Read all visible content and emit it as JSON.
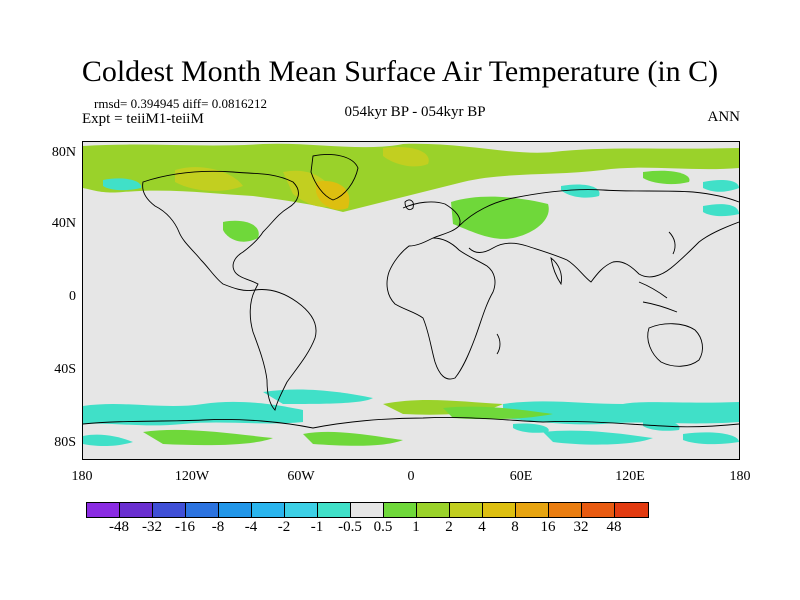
{
  "title": "Coldest Month Mean Surface Air Temperature (in C)",
  "stats": "rmsd= 0.394945 diff= 0.0816212",
  "expt": "Expt = teiiM1-teiiM",
  "period": "054kyr BP - 054kyr BP",
  "season": "ANN",
  "lat_labels": [
    "80N",
    "40N",
    "0",
    "40S",
    "80S"
  ],
  "lon_labels": [
    "180",
    "120W",
    "60W",
    "0",
    "60E",
    "120E",
    "180"
  ],
  "colorbar": {
    "colors": [
      "#8a2be2",
      "#6a2fd0",
      "#3f4fd6",
      "#2b73e0",
      "#2196e8",
      "#2ab5ee",
      "#3cd0e6",
      "#40e0c8",
      "#e6e6e6",
      "#6fd83a",
      "#9ad22a",
      "#c2cf20",
      "#ddbf10",
      "#e7a410",
      "#ea7d10",
      "#e85a10",
      "#e23a10"
    ],
    "labels": [
      "-48",
      "-32",
      "-16",
      "-8",
      "-4",
      "-2",
      "-1",
      "-0.5",
      "0.5",
      "1",
      "2",
      "4",
      "8",
      "16",
      "32",
      "48"
    ]
  },
  "field_colors": {
    "land": "#e6e6e6",
    "pos1": "#6fd83a",
    "pos2": "#9ad22a",
    "pos4": "#c2cf20",
    "pos8": "#ddbf10",
    "neg": "#40e0c8",
    "neg2": "#3cd0e6"
  }
}
